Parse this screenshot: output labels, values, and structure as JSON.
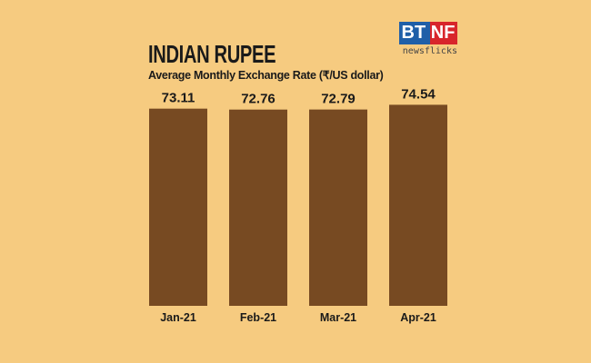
{
  "logo": {
    "text": "BT NF",
    "tagline": "newsflicks",
    "colors": [
      "#1f5fa8",
      "#d8252b"
    ]
  },
  "chart_data": {
    "type": "bar",
    "title": "INDIAN RUPEE",
    "subtitle": "Average Monthly Exchange Rate (₹/US dollar)",
    "categories": [
      "Jan-21",
      "Feb-21",
      "Mar-21",
      "Apr-21"
    ],
    "values": [
      73.11,
      72.76,
      72.79,
      74.54
    ],
    "ylim": [
      0,
      75.7
    ],
    "grid": false,
    "bar_color": "#774A22",
    "background": "#F6CB80"
  }
}
